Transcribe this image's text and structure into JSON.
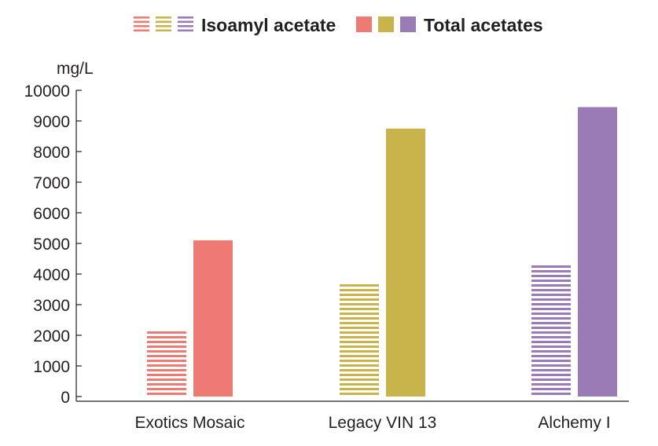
{
  "chart_data": {
    "type": "bar",
    "ylabel": "mg/L",
    "ylim": [
      0,
      10000
    ],
    "yticks": [
      0,
      1000,
      2000,
      3000,
      4000,
      5000,
      6000,
      7000,
      8000,
      9000,
      10000
    ],
    "categories": [
      "Exotics Mosaic",
      "Legacy VIN 13",
      "Alchemy I"
    ],
    "category_colors": [
      "#ee7a74",
      "#c9b44c",
      "#9b7bb6"
    ],
    "series": [
      {
        "name": "Isoamyl acetate",
        "style": "striped",
        "values": [
          2100,
          3650,
          4350
        ]
      },
      {
        "name": "Total acetates",
        "style": "solid",
        "values": [
          5100,
          8750,
          9450
        ]
      }
    ],
    "legend_position": "top",
    "grid": false
  }
}
